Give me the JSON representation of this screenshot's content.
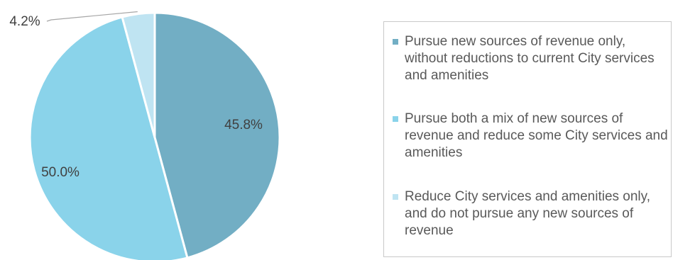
{
  "chart_data": {
    "type": "pie",
    "title": "",
    "slices": [
      {
        "label": "Pursue new sources of revenue only, without reductions to current City services and amenities",
        "value": 45.8,
        "display": "45.8%",
        "color": "#72aec4"
      },
      {
        "label": "Pursue both a mix of new sources of revenue and reduce some City services and amenities",
        "value": 50.0,
        "display": "50.0%",
        "color": "#8ad3ea"
      },
      {
        "label": "Reduce City services and amenities only, and do not pursue any new sources of revenue",
        "value": 4.2,
        "display": "4.2%",
        "color": "#bfe4f2"
      }
    ],
    "legend_position": "right"
  }
}
